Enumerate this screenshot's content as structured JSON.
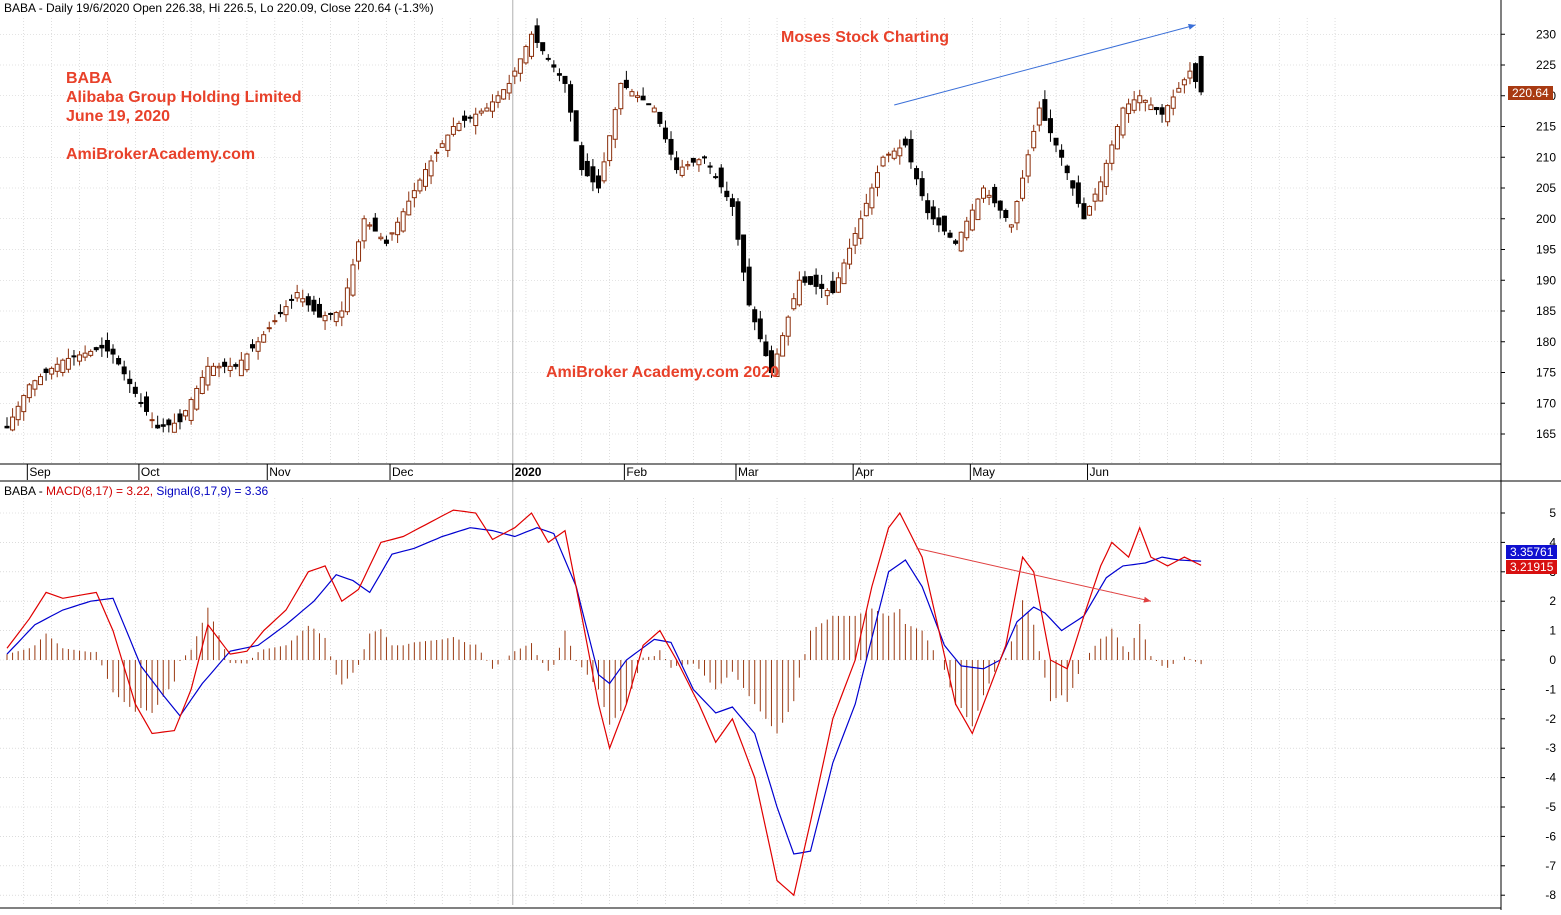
{
  "header": {
    "price_title": "BABA - Daily 19/6/2020 Open 226.38, Hi 226.5, Lo 220.09, Close 220.64 (-1.3%)",
    "macd_prefix": "BABA - ",
    "macd_label": "MACD(8,17) = 3.22,",
    "signal_label": "Signal(8,17,9) = 3.36"
  },
  "annotations": {
    "ticker": "BABA",
    "company": "Alibaba Group Holding Limited",
    "date": "June 19, 2020",
    "site": "AmiBrokerAcademy.com",
    "watermark": "AmiBroker Academy.com  2020",
    "charting": "Moses Stock Charting"
  },
  "price_tags": {
    "last_close": "220.64",
    "signal_value": "3.35761",
    "macd_value": "3.21915"
  },
  "colors": {
    "up_candle": "#8b2e0a",
    "down_candle": "#000000",
    "macd_line": "#e00000",
    "signal_line": "#0000d0",
    "histogram": "#9a3a12",
    "annotation": "#e8412a",
    "grid": "#c8c8c8"
  },
  "chart_data": [
    {
      "type": "candlestick",
      "title": "BABA - Daily 19/6/2020 Open 226.38, Hi 226.5, Lo 220.09, Close 220.64 (-1.3%)",
      "ylim": [
        160,
        232
      ],
      "yticks": [
        165,
        170,
        175,
        180,
        185,
        190,
        195,
        200,
        205,
        210,
        215,
        220,
        225,
        230
      ],
      "x_month_labels": [
        "Sep",
        "Oct",
        "Nov",
        "Dec",
        "2020",
        "Feb",
        "Mar",
        "Apr",
        "May",
        "Jun"
      ],
      "anchors_close": [
        [
          0,
          166
        ],
        [
          4,
          173
        ],
        [
          10,
          177
        ],
        [
          17,
          179
        ],
        [
          19,
          178
        ],
        [
          24,
          170
        ],
        [
          27,
          166
        ],
        [
          31,
          167
        ],
        [
          36,
          176
        ],
        [
          41,
          176
        ],
        [
          45,
          180
        ],
        [
          52,
          188
        ],
        [
          56,
          184
        ],
        [
          60,
          185
        ],
        [
          64,
          200
        ],
        [
          68,
          196
        ],
        [
          75,
          208
        ],
        [
          80,
          215
        ],
        [
          86,
          218
        ],
        [
          90,
          222
        ],
        [
          94,
          230
        ],
        [
          100,
          222
        ],
        [
          103,
          208
        ],
        [
          106,
          205
        ],
        [
          110,
          222
        ],
        [
          116,
          218
        ],
        [
          120,
          208
        ],
        [
          125,
          210
        ],
        [
          130,
          202
        ],
        [
          133,
          186
        ],
        [
          137,
          175
        ],
        [
          142,
          190
        ],
        [
          148,
          188
        ],
        [
          153,
          200
        ],
        [
          157,
          210
        ],
        [
          161,
          212
        ],
        [
          165,
          201
        ],
        [
          170,
          196
        ],
        [
          175,
          205
        ],
        [
          180,
          199
        ],
        [
          185,
          218
        ],
        [
          189,
          210
        ],
        [
          193,
          200
        ],
        [
          196,
          206
        ],
        [
          200,
          218
        ],
        [
          203,
          220
        ],
        [
          207,
          217
        ],
        [
          212,
          224
        ],
        [
          214,
          220.64
        ]
      ],
      "last": {
        "open": 226.38,
        "high": 226.5,
        "low": 220.09,
        "close": 220.64
      }
    },
    {
      "type": "line",
      "title": "BABA - MACD(8,17) = 3.22, Signal(8,17,9) = 3.36",
      "ylim": [
        -8.2,
        5.3
      ],
      "yticks": [
        -8,
        -7,
        -6,
        -5,
        -4,
        -3,
        -2,
        -1,
        0,
        1,
        2,
        3,
        4,
        5
      ],
      "series": [
        {
          "name": "MACD(8,17)",
          "anchors": [
            [
              0,
              0.4
            ],
            [
              4,
              1.4
            ],
            [
              7,
              2.3
            ],
            [
              10,
              2.1
            ],
            [
              13,
              2.2
            ],
            [
              16,
              2.3
            ],
            [
              19,
              1.0
            ],
            [
              23,
              -1.5
            ],
            [
              26,
              -2.5
            ],
            [
              30,
              -2.4
            ],
            [
              33,
              -1.0
            ],
            [
              36,
              1.2
            ],
            [
              40,
              0.2
            ],
            [
              43,
              0.3
            ],
            [
              46,
              1.0
            ],
            [
              50,
              1.7
            ],
            [
              54,
              3.0
            ],
            [
              57,
              3.2
            ],
            [
              60,
              2.0
            ],
            [
              63,
              2.4
            ],
            [
              67,
              4.0
            ],
            [
              71,
              4.2
            ],
            [
              75,
              4.6
            ],
            [
              80,
              5.1
            ],
            [
              84,
              5.0
            ],
            [
              87,
              4.1
            ],
            [
              91,
              4.5
            ],
            [
              94,
              5.0
            ],
            [
              97,
              4.0
            ],
            [
              100,
              4.4
            ],
            [
              103,
              1.5
            ],
            [
              106,
              -1.5
            ],
            [
              108,
              -3.0
            ],
            [
              111,
              -1.5
            ],
            [
              114,
              0.5
            ],
            [
              117,
              1.0
            ],
            [
              120,
              0.0
            ],
            [
              124,
              -1.5
            ],
            [
              127,
              -2.8
            ],
            [
              130,
              -2.0
            ],
            [
              134,
              -4.0
            ],
            [
              138,
              -7.5
            ],
            [
              141,
              -8.0
            ],
            [
              144,
              -5.5
            ],
            [
              148,
              -2.0
            ],
            [
              152,
              0.0
            ],
            [
              155,
              2.5
            ],
            [
              158,
              4.5
            ],
            [
              160,
              5.0
            ],
            [
              164,
              3.5
            ],
            [
              167,
              1.0
            ],
            [
              170,
              -1.5
            ],
            [
              173,
              -2.5
            ],
            [
              176,
              -1.0
            ],
            [
              179,
              0.5
            ],
            [
              182,
              3.5
            ],
            [
              184,
              3.0
            ],
            [
              187,
              0.0
            ],
            [
              190,
              -0.3
            ],
            [
              193,
              1.5
            ],
            [
              196,
              3.2
            ],
            [
              198,
              4.0
            ],
            [
              201,
              3.5
            ],
            [
              203,
              4.5
            ],
            [
              205,
              3.5
            ],
            [
              208,
              3.2
            ],
            [
              211,
              3.5
            ],
            [
              214,
              3.22
            ]
          ]
        },
        {
          "name": "Signal(8,17,9)",
          "anchors": [
            [
              0,
              0.2
            ],
            [
              5,
              1.2
            ],
            [
              10,
              1.7
            ],
            [
              15,
              2.0
            ],
            [
              19,
              2.1
            ],
            [
              24,
              -0.2
            ],
            [
              28,
              -1.2
            ],
            [
              31,
              -1.9
            ],
            [
              35,
              -0.8
            ],
            [
              40,
              0.3
            ],
            [
              45,
              0.5
            ],
            [
              50,
              1.2
            ],
            [
              55,
              2.0
            ],
            [
              59,
              2.9
            ],
            [
              62,
              2.7
            ],
            [
              65,
              2.3
            ],
            [
              69,
              3.6
            ],
            [
              73,
              3.8
            ],
            [
              78,
              4.2
            ],
            [
              83,
              4.5
            ],
            [
              87,
              4.4
            ],
            [
              91,
              4.2
            ],
            [
              95,
              4.5
            ],
            [
              98,
              4.3
            ],
            [
              102,
              2.5
            ],
            [
              106,
              -0.5
            ],
            [
              108,
              -0.8
            ],
            [
              111,
              0.0
            ],
            [
              116,
              0.7
            ],
            [
              119,
              0.6
            ],
            [
              123,
              -1.0
            ],
            [
              127,
              -1.8
            ],
            [
              130,
              -1.6
            ],
            [
              134,
              -2.5
            ],
            [
              138,
              -5.0
            ],
            [
              141,
              -6.6
            ],
            [
              144,
              -6.5
            ],
            [
              148,
              -3.5
            ],
            [
              152,
              -1.5
            ],
            [
              156,
              1.5
            ],
            [
              158,
              3.0
            ],
            [
              161,
              3.4
            ],
            [
              164,
              2.5
            ],
            [
              168,
              0.5
            ],
            [
              171,
              -0.2
            ],
            [
              175,
              -0.3
            ],
            [
              178,
              0.0
            ],
            [
              181,
              1.3
            ],
            [
              184,
              1.8
            ],
            [
              186,
              1.6
            ],
            [
              189,
              1.0
            ],
            [
              193,
              1.5
            ],
            [
              197,
              2.8
            ],
            [
              200,
              3.2
            ],
            [
              204,
              3.3
            ],
            [
              207,
              3.5
            ],
            [
              210,
              3.4
            ],
            [
              214,
              3.36
            ]
          ]
        }
      ],
      "histogram": "MACD minus Signal"
    }
  ],
  "trend_arrows": [
    {
      "panel": "price",
      "from": [
        159,
        218.5
      ],
      "to": [
        213,
        231.5
      ],
      "color": "#3a6fd8"
    },
    {
      "panel": "macd",
      "from": [
        163,
        3.8
      ],
      "to": [
        205,
        2.0
      ],
      "color": "#e04040"
    }
  ]
}
